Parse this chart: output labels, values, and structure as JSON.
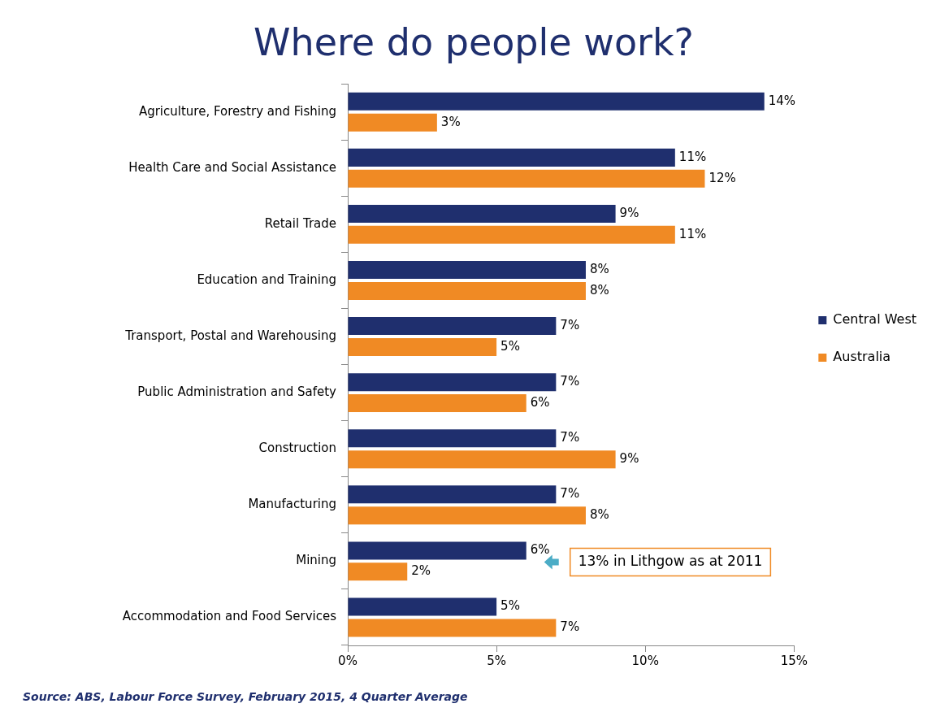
{
  "chart_data": {
    "type": "bar",
    "orientation": "horizontal",
    "title": "Where do people work?",
    "categories": [
      "Agriculture, Forestry and Fishing",
      "Health Care and Social Assistance",
      "Retail Trade",
      "Education and Training",
      "Transport, Postal and Warehousing",
      "Public Administration and Safety",
      "Construction",
      "Manufacturing",
      "Mining",
      "Accommodation and Food Services"
    ],
    "series": [
      {
        "name": "Central West",
        "color": "#1f2f6e",
        "values": [
          14,
          11,
          9,
          8,
          7,
          7,
          7,
          7,
          6,
          5
        ],
        "value_labels": [
          "14%",
          "11%",
          "9%",
          "8%",
          "7%",
          "7%",
          "7%",
          "7%",
          "6%",
          "5%"
        ]
      },
      {
        "name": "Australia",
        "color": "#f08a24",
        "values": [
          3,
          12,
          11,
          8,
          5,
          6,
          9,
          8,
          2,
          7
        ],
        "value_labels": [
          "3%",
          "12%",
          "11%",
          "8%",
          "5%",
          "6%",
          "9%",
          "8%",
          "2%",
          "7%"
        ]
      }
    ],
    "xlim": [
      0,
      15
    ],
    "xticks": [
      {
        "value": 0,
        "label": "0%"
      },
      {
        "value": 5,
        "label": "5%"
      },
      {
        "value": 10,
        "label": "10%"
      },
      {
        "value": 15,
        "label": "15%"
      }
    ],
    "grid": false,
    "legend": "right",
    "annotations": [
      "13% in Lithgow as at 2011",
      "Source: ABS, Labour Force Survey, February 2015, 4 Quarter Average"
    ]
  }
}
